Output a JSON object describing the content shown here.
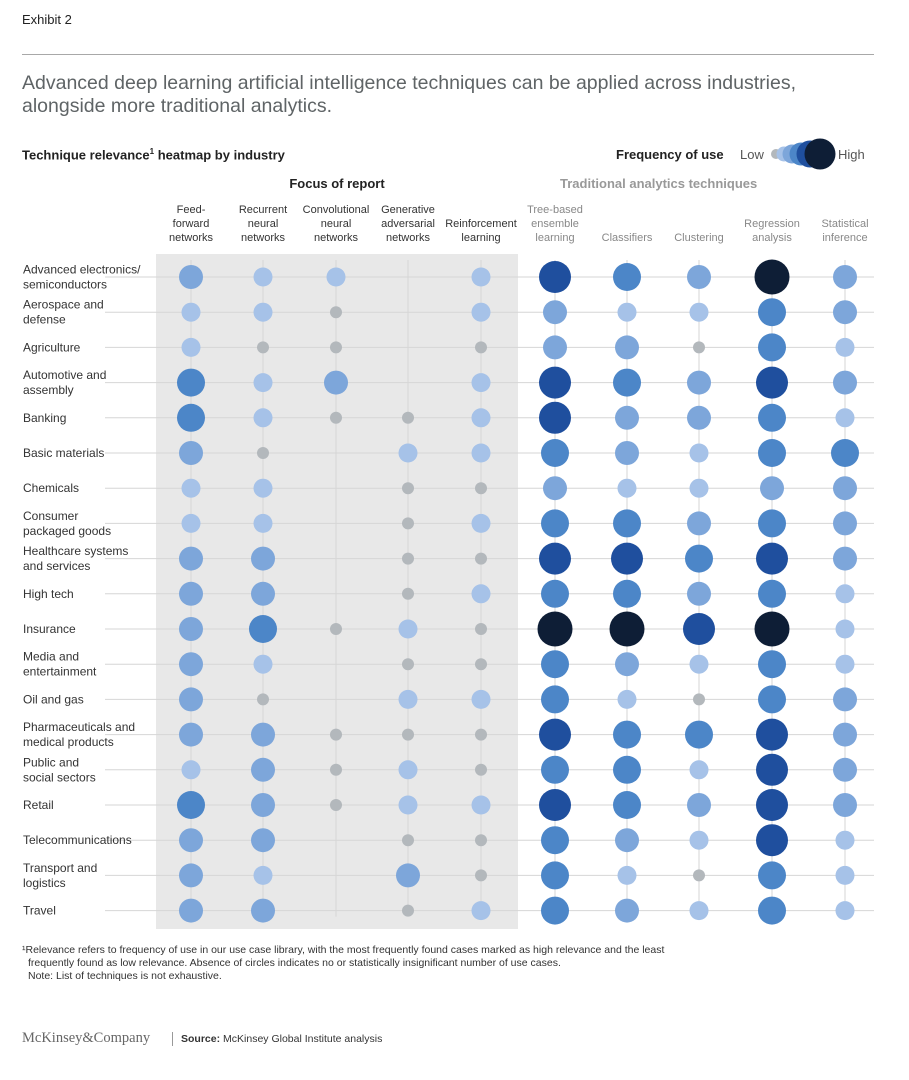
{
  "exhibit": "Exhibit 2",
  "headline": "Advanced deep learning artificial intelligence techniques can be applied across industries, alongside more traditional analytics.",
  "subheading": {
    "text": "Technique relevance",
    "sup": "1",
    "suffix": " heatmap by industry"
  },
  "legend": {
    "title": "Frequency of use",
    "low": "Low",
    "high": "High"
  },
  "group_labels": {
    "focus": "Focus of report",
    "traditional": "Traditional analytics techniques"
  },
  "footnote": {
    "line1": "¹Relevance refers to frequency of use in our use case library, with the most frequently found cases marked as high relevance and the least",
    "line2": "frequently found as low relevance. Absence of circles indicates no or statistically insignificant number of use cases.",
    "line3": "Note: List of techniques is not exhaustive."
  },
  "brand": "McKinsey&Company",
  "source": {
    "label": "Source:",
    "text": "McKinsey Global Institute analysis"
  },
  "colors": {
    "level1": "#b3b8bc",
    "level2": "#a6c2e8",
    "level3": "#7da6da",
    "level4": "#4c86c8",
    "level5": "#1f4f9e",
    "level6": "#0e1e36",
    "panel": "#e8e8e8"
  },
  "chart_data": {
    "type": "heatmap",
    "title": "Technique relevance heatmap by industry",
    "scale": "Frequency of use: 0 = none, 1 = Low ... 6 = High",
    "columns": [
      {
        "label": [
          "Feed-",
          "forward",
          "networks"
        ],
        "group": "focus"
      },
      {
        "label": [
          "Recurrent",
          "neural",
          "networks"
        ],
        "group": "focus"
      },
      {
        "label": [
          "Convolutional",
          "neural",
          "networks"
        ],
        "group": "focus"
      },
      {
        "label": [
          "Generative",
          "adversarial",
          "networks"
        ],
        "group": "focus"
      },
      {
        "label": [
          "Reinforcement",
          "learning"
        ],
        "group": "focus"
      },
      {
        "label": [
          "Tree-based",
          "ensemble",
          "learning"
        ],
        "group": "traditional"
      },
      {
        "label": [
          "Classifiers"
        ],
        "group": "traditional"
      },
      {
        "label": [
          "Clustering"
        ],
        "group": "traditional"
      },
      {
        "label": [
          "Regression",
          "analysis"
        ],
        "group": "traditional"
      },
      {
        "label": [
          "Statistical",
          "inference"
        ],
        "group": "traditional"
      }
    ],
    "rows": [
      {
        "label": [
          "Advanced electronics/",
          "semiconductors"
        ],
        "values": [
          3,
          2,
          2,
          0,
          2,
          5,
          4,
          3,
          6,
          3
        ]
      },
      {
        "label": [
          "Aerospace and",
          "defense"
        ],
        "values": [
          2,
          2,
          1,
          0,
          2,
          3,
          2,
          2,
          4,
          3
        ]
      },
      {
        "label": [
          "Agriculture"
        ],
        "values": [
          2,
          1,
          1,
          0,
          1,
          3,
          3,
          1,
          4,
          2
        ]
      },
      {
        "label": [
          "Automotive and",
          "assembly"
        ],
        "values": [
          4,
          2,
          3,
          0,
          2,
          5,
          4,
          3,
          5,
          3
        ]
      },
      {
        "label": [
          "Banking"
        ],
        "values": [
          4,
          2,
          1,
          1,
          2,
          5,
          3,
          3,
          4,
          2
        ]
      },
      {
        "label": [
          "Basic materials"
        ],
        "values": [
          3,
          1,
          0,
          2,
          2,
          4,
          3,
          2,
          4,
          4
        ]
      },
      {
        "label": [
          "Chemicals"
        ],
        "values": [
          2,
          2,
          0,
          1,
          1,
          3,
          2,
          2,
          3,
          3
        ]
      },
      {
        "label": [
          "Consumer",
          "packaged goods"
        ],
        "values": [
          2,
          2,
          0,
          1,
          2,
          4,
          4,
          3,
          4,
          3
        ]
      },
      {
        "label": [
          "Healthcare systems",
          "and services"
        ],
        "values": [
          3,
          3,
          0,
          1,
          1,
          5,
          5,
          4,
          5,
          3
        ]
      },
      {
        "label": [
          "High tech"
        ],
        "values": [
          3,
          3,
          0,
          1,
          2,
          4,
          4,
          3,
          4,
          2
        ]
      },
      {
        "label": [
          "Insurance"
        ],
        "values": [
          3,
          4,
          1,
          2,
          1,
          6,
          6,
          5,
          6,
          2
        ]
      },
      {
        "label": [
          "Media and",
          "entertainment"
        ],
        "values": [
          3,
          2,
          0,
          1,
          1,
          4,
          3,
          2,
          4,
          2
        ]
      },
      {
        "label": [
          "Oil and gas"
        ],
        "values": [
          3,
          1,
          0,
          2,
          2,
          4,
          2,
          1,
          4,
          3
        ]
      },
      {
        "label": [
          "Pharmaceuticals and",
          "medical products"
        ],
        "values": [
          3,
          3,
          1,
          1,
          1,
          5,
          4,
          4,
          5,
          3
        ]
      },
      {
        "label": [
          "Public and",
          "social sectors"
        ],
        "values": [
          2,
          3,
          1,
          2,
          1,
          4,
          4,
          2,
          5,
          3
        ]
      },
      {
        "label": [
          "Retail"
        ],
        "values": [
          4,
          3,
          1,
          2,
          2,
          5,
          4,
          3,
          5,
          3
        ]
      },
      {
        "label": [
          "Telecommunications"
        ],
        "values": [
          3,
          3,
          0,
          1,
          1,
          4,
          3,
          2,
          5,
          2
        ]
      },
      {
        "label": [
          "Transport and",
          "logistics"
        ],
        "values": [
          3,
          2,
          0,
          3,
          1,
          4,
          2,
          1,
          4,
          2
        ]
      },
      {
        "label": [
          "Travel"
        ],
        "values": [
          3,
          3,
          0,
          1,
          2,
          4,
          3,
          2,
          4,
          2
        ]
      }
    ]
  }
}
